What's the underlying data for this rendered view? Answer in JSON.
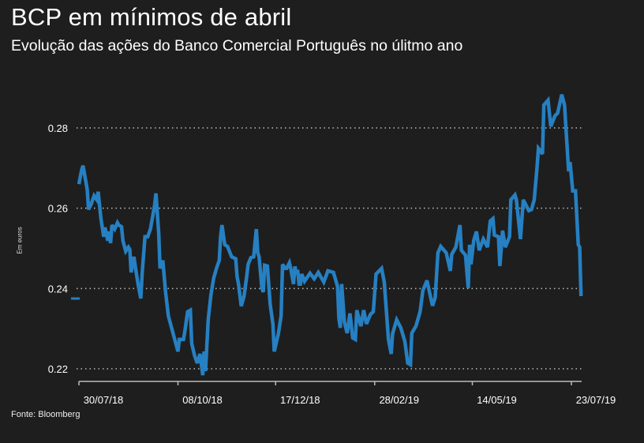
{
  "title": "BCP em mínimos de abril",
  "subtitle": "Evolução das ações do Banco Comercial Português no úlitmo ano",
  "source": "Fonte: Bloomberg",
  "colors": {
    "background": "#1e1e1e",
    "line": "#2680c2",
    "grid": "#bbbbbb",
    "axis": "#bbbbbb"
  },
  "chart_data": {
    "type": "line",
    "title": "BCP em mínimos de abril",
    "ylabel": "Em euros",
    "xlabel": "",
    "ylim": [
      0.22,
      0.28
    ],
    "yticks": [
      {
        "value": 0.22,
        "label": "0.22"
      },
      {
        "value": 0.24,
        "label": "0.24"
      },
      {
        "value": 0.26,
        "label": "0.26"
      },
      {
        "value": 0.28,
        "label": "0.28"
      }
    ],
    "x_unit": "days since 30/07/18",
    "xlim": [
      0,
      358
    ],
    "xticks": [
      {
        "day": 0,
        "label": "30/07/18"
      },
      {
        "day": 72,
        "label": "08/10/18"
      },
      {
        "day": 143,
        "label": "17/12/18"
      },
      {
        "day": 215,
        "label": "28/02/19"
      },
      {
        "day": 286,
        "label": "14/05/19"
      },
      {
        "day": 358,
        "label": "23/07/19"
      }
    ],
    "grid": true,
    "series": [
      {
        "name": "BCP",
        "points": [
          [
            0,
            0.266
          ],
          [
            2,
            0.2696
          ],
          [
            3,
            0.2706
          ],
          [
            6,
            0.2647
          ],
          [
            7,
            0.2597
          ],
          [
            9,
            0.2611
          ],
          [
            11,
            0.2631
          ],
          [
            13,
            0.2621
          ],
          [
            14,
            0.2641
          ],
          [
            16,
            0.2574
          ],
          [
            18,
            0.2529
          ],
          [
            19,
            0.2552
          ],
          [
            21,
            0.2519
          ],
          [
            22,
            0.2542
          ],
          [
            23,
            0.2513
          ],
          [
            24,
            0.2558
          ],
          [
            26,
            0.2548
          ],
          [
            28,
            0.2564
          ],
          [
            29,
            0.2558
          ],
          [
            31,
            0.2554
          ],
          [
            32,
            0.2519
          ],
          [
            34,
            0.2493
          ],
          [
            36,
            0.2503
          ],
          [
            37,
            0.2497
          ],
          [
            38,
            0.244
          ],
          [
            40,
            0.2479
          ],
          [
            41,
            0.2454
          ],
          [
            43,
            0.2411
          ],
          [
            45,
            0.2375
          ],
          [
            46,
            0.244
          ],
          [
            48,
            0.2529
          ],
          [
            50,
            0.2529
          ],
          [
            52,
            0.2548
          ],
          [
            53,
            0.2568
          ],
          [
            55,
            0.2607
          ],
          [
            56,
            0.2637
          ],
          [
            58,
            0.2538
          ],
          [
            59,
            0.245
          ],
          [
            61,
            0.247
          ],
          [
            63,
            0.2391
          ],
          [
            65,
            0.2332
          ],
          [
            72,
            0.2243
          ],
          [
            73,
            0.2273
          ],
          [
            76,
            0.2273
          ],
          [
            77,
            0.2293
          ],
          [
            79,
            0.2342
          ],
          [
            81,
            0.2346
          ],
          [
            82,
            0.2263
          ],
          [
            84,
            0.2234
          ],
          [
            86,
            0.2214
          ],
          [
            88,
            0.2237
          ],
          [
            90,
            0.2184
          ],
          [
            91,
            0.2243
          ],
          [
            92,
            0.2194
          ],
          [
            94,
            0.2322
          ],
          [
            96,
            0.2385
          ],
          [
            98,
            0.2426
          ],
          [
            100,
            0.245
          ],
          [
            102,
            0.247
          ],
          [
            103,
            0.2529
          ],
          [
            104,
            0.2558
          ],
          [
            105,
            0.2533
          ],
          [
            106,
            0.2509
          ],
          [
            108,
            0.2505
          ],
          [
            111,
            0.2479
          ],
          [
            114,
            0.2474
          ],
          [
            115,
            0.243
          ],
          [
            116,
            0.2411
          ],
          [
            118,
            0.2356
          ],
          [
            120,
            0.2381
          ],
          [
            122,
            0.243
          ],
          [
            123,
            0.246
          ],
          [
            125,
            0.2477
          ],
          [
            127,
            0.2479
          ],
          [
            129,
            0.2548
          ],
          [
            130,
            0.2489
          ],
          [
            131,
            0.2479
          ],
          [
            133,
            0.2401
          ],
          [
            134,
            0.2391
          ],
          [
            135,
            0.2458
          ],
          [
            137,
            0.2456
          ],
          [
            138,
            0.2411
          ],
          [
            139,
            0.2361
          ],
          [
            141,
            0.2312
          ],
          [
            142,
            0.2243
          ],
          [
            144,
            0.2273
          ],
          [
            145,
            0.2287
          ],
          [
            147,
            0.2332
          ],
          [
            148,
            0.246
          ],
          [
            150,
            0.245
          ],
          [
            151,
            0.245
          ],
          [
            153,
            0.2464
          ],
          [
            154,
            0.245
          ],
          [
            156,
            0.2411
          ],
          [
            157,
            0.2455
          ],
          [
            158,
            0.2436
          ],
          [
            159,
            0.2446
          ],
          [
            160,
            0.2411
          ],
          [
            161,
            0.2411
          ],
          [
            162,
            0.2436
          ],
          [
            164,
            0.2418
          ],
          [
            168,
            0.2438
          ],
          [
            171,
            0.2424
          ],
          [
            174,
            0.244
          ],
          [
            178,
            0.2416
          ],
          [
            181,
            0.2444
          ],
          [
            185,
            0.244
          ],
          [
            188,
            0.2405
          ],
          [
            189,
            0.2326
          ],
          [
            190,
            0.2302
          ],
          [
            191,
            0.2411
          ],
          [
            193,
            0.2316
          ],
          [
            195,
            0.2289
          ],
          [
            197,
            0.2338
          ],
          [
            199,
            0.2277
          ],
          [
            201,
            0.2273
          ],
          [
            202,
            0.2346
          ],
          [
            205,
            0.2306
          ],
          [
            207,
            0.2346
          ],
          [
            209,
            0.2312
          ],
          [
            212,
            0.2336
          ],
          [
            214,
            0.2342
          ],
          [
            216,
            0.2436
          ],
          [
            220,
            0.245
          ],
          [
            222,
            0.2416
          ],
          [
            225,
            0.2273
          ],
          [
            227,
            0.2237
          ],
          [
            228,
            0.2287
          ],
          [
            231,
            0.2322
          ],
          [
            234,
            0.2302
          ],
          [
            237,
            0.2267
          ],
          [
            239,
            0.2214
          ],
          [
            241,
            0.221
          ],
          [
            242,
            0.2289
          ],
          [
            245,
            0.2306
          ],
          [
            248,
            0.2342
          ],
          [
            250,
            0.2395
          ],
          [
            253,
            0.242
          ],
          [
            257,
            0.2357
          ],
          [
            259,
            0.2377
          ],
          [
            261,
            0.2489
          ],
          [
            263,
            0.2505
          ],
          [
            267,
            0.2489
          ],
          [
            270,
            0.2444
          ],
          [
            271,
            0.2485
          ],
          [
            274,
            0.2503
          ],
          [
            277,
            0.2558
          ],
          [
            278,
            0.2495
          ],
          [
            281,
            0.2483
          ],
          [
            283,
            0.2401
          ],
          [
            284,
            0.2509
          ],
          [
            285,
            0.246
          ],
          [
            287,
            0.2519
          ],
          [
            289,
            0.2542
          ],
          [
            291,
            0.2495
          ],
          [
            294,
            0.2523
          ],
          [
            297,
            0.2503
          ],
          [
            299,
            0.2568
          ],
          [
            301,
            0.2574
          ],
          [
            302,
            0.2533
          ],
          [
            305,
            0.2529
          ],
          [
            306,
            0.2456
          ],
          [
            308,
            0.2544
          ],
          [
            310,
            0.2503
          ],
          [
            313,
            0.2529
          ],
          [
            314,
            0.2621
          ],
          [
            317,
            0.2633
          ],
          [
            318,
            0.2621
          ],
          [
            321,
            0.2523
          ],
          [
            323,
            0.2621
          ],
          [
            327,
            0.2594
          ],
          [
            329,
            0.2597
          ],
          [
            331,
            0.2621
          ],
          [
            333,
            0.27
          ],
          [
            334,
            0.2749
          ],
          [
            337,
            0.2735
          ],
          [
            338,
            0.2857
          ],
          [
            341,
            0.2869
          ],
          [
            343,
            0.2804
          ],
          [
            346,
            0.283
          ],
          [
            348,
            0.2837
          ],
          [
            351,
            0.2883
          ],
          [
            353,
            0.2857
          ],
          [
            356,
            0.2692
          ],
          [
            357,
            0.2715
          ],
          [
            359,
            0.2643
          ],
          [
            361,
            0.2643
          ],
          [
            363,
            0.2509
          ],
          [
            364,
            0.2503
          ],
          [
            365,
            0.2381
          ]
        ]
      }
    ],
    "marker_value": 0.2375,
    "legend": "none"
  }
}
